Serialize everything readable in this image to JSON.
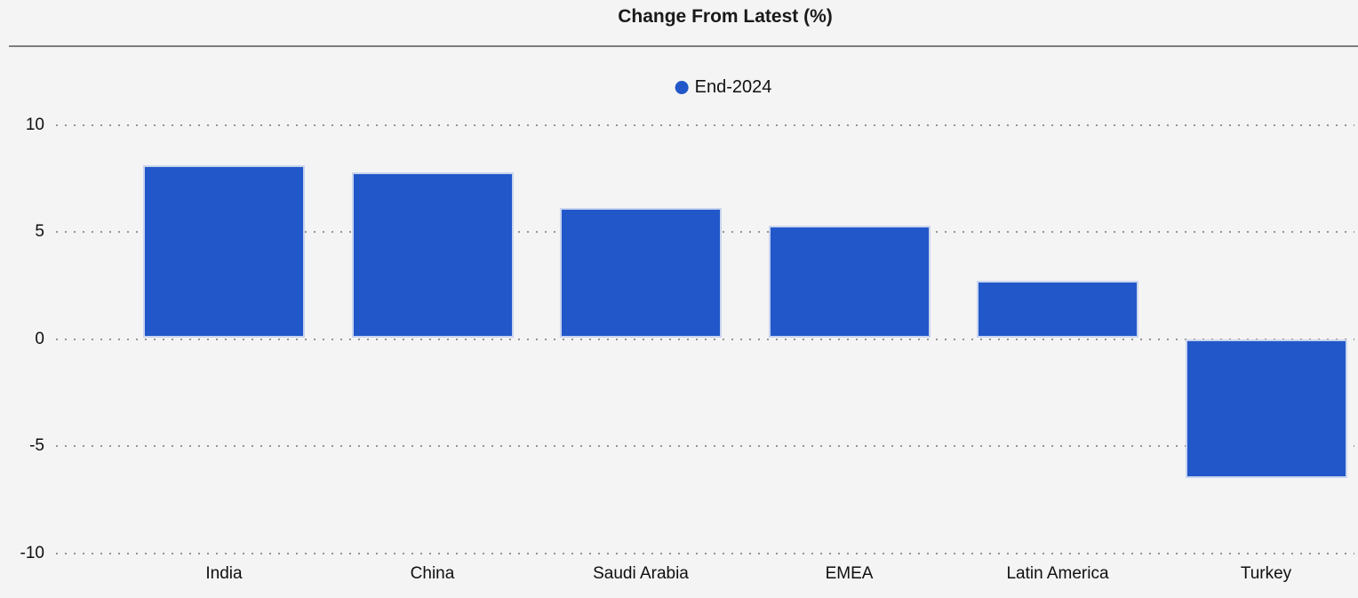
{
  "header": {
    "title": "Change From Latest (%)"
  },
  "legend": {
    "series_label": "End-2024",
    "marker_color": "#2157c9"
  },
  "colors": {
    "background": "#f4f4f4",
    "bar_fill": "#2157c9",
    "bar_border": "#c9d4ee",
    "gridline": "#949494",
    "separator": "#7d7d7d",
    "text": "#0f0f0f"
  },
  "chart_data": {
    "type": "bar",
    "title": "Change From Latest (%)",
    "categories": [
      "India",
      "China",
      "Saudi Arabia",
      "EMEA",
      "Latin America",
      "Turkey"
    ],
    "series": [
      {
        "name": "End-2024",
        "values": [
          8.1,
          7.8,
          6.1,
          5.3,
          2.7,
          -6.5
        ]
      }
    ],
    "xlabel": "",
    "ylabel": "",
    "ylim": [
      -10,
      10
    ],
    "yticks": [
      10,
      5,
      0,
      -5,
      -10
    ],
    "grid": "horizontal-dotted",
    "legend_position": "top-center",
    "bar_color": "#2157c9"
  }
}
